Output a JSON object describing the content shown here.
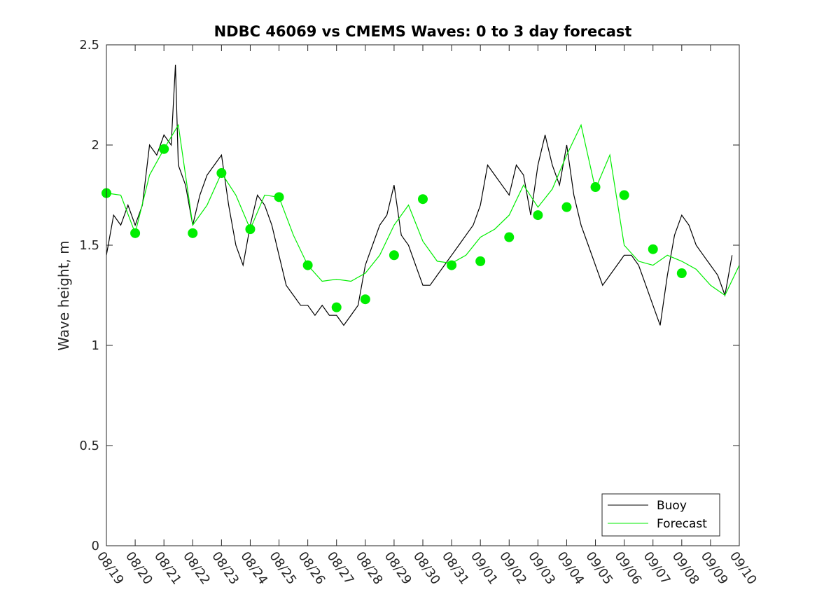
{
  "chart_data": {
    "type": "line",
    "title": "NDBC 46069 vs CMEMS Waves: 0 to 3 day forecast",
    "ylabel": "Wave height, m",
    "xlabel": "",
    "xlim": [
      0,
      22
    ],
    "ylim": [
      0,
      2.5
    ],
    "yticks": [
      0,
      0.5,
      1,
      1.5,
      2,
      2.5
    ],
    "ytick_labels": [
      "0",
      "0.5",
      "1",
      "1.5",
      "2",
      "2.5"
    ],
    "categories": [
      "08/19",
      "08/20",
      "08/21",
      "08/22",
      "08/23",
      "08/24",
      "08/25",
      "08/26",
      "08/27",
      "08/28",
      "08/29",
      "08/30",
      "08/31",
      "09/01",
      "09/02",
      "09/03",
      "09/04",
      "09/05",
      "09/06",
      "09/07",
      "09/08",
      "09/09",
      "09/10"
    ],
    "grid": false,
    "legend_position": "bottom-right",
    "colors": {
      "buoy": "#000000",
      "forecast": "#00ee00"
    },
    "series": [
      {
        "name": "Buoy",
        "x": [
          0,
          0.25,
          0.5,
          0.75,
          1,
          1.25,
          1.5,
          1.75,
          2,
          2.25,
          2.4,
          2.5,
          2.75,
          3,
          3.25,
          3.5,
          3.75,
          4,
          4.25,
          4.5,
          4.75,
          5,
          5.25,
          5.5,
          5.75,
          6,
          6.25,
          6.5,
          6.75,
          7,
          7.25,
          7.5,
          7.75,
          8,
          8.25,
          8.5,
          8.75,
          9,
          9.25,
          9.5,
          9.75,
          10,
          10.25,
          10.5,
          10.75,
          11,
          11.25,
          11.5,
          11.75,
          12,
          12.25,
          12.5,
          12.75,
          13,
          13.25,
          13.5,
          13.75,
          14,
          14.25,
          14.5,
          14.75,
          15,
          15.25,
          15.5,
          15.75,
          16,
          16.25,
          16.5,
          16.75,
          17,
          17.25,
          17.5,
          17.75,
          18,
          18.25,
          18.5,
          18.75,
          19,
          19.25,
          19.5,
          19.75,
          20,
          20.25,
          20.5,
          20.75,
          21,
          21.25,
          21.5,
          21.75
        ],
        "values": [
          1.45,
          1.65,
          1.6,
          1.7,
          1.6,
          1.7,
          2.0,
          1.95,
          2.05,
          2.0,
          2.4,
          1.9,
          1.8,
          1.6,
          1.75,
          1.85,
          1.9,
          1.95,
          1.7,
          1.5,
          1.4,
          1.6,
          1.75,
          1.7,
          1.6,
          1.45,
          1.3,
          1.25,
          1.2,
          1.2,
          1.15,
          1.2,
          1.15,
          1.15,
          1.1,
          1.15,
          1.2,
          1.4,
          1.5,
          1.6,
          1.65,
          1.8,
          1.55,
          1.5,
          1.4,
          1.3,
          1.3,
          1.35,
          1.4,
          1.45,
          1.5,
          1.55,
          1.6,
          1.7,
          1.9,
          1.85,
          1.8,
          1.75,
          1.9,
          1.85,
          1.65,
          1.9,
          2.05,
          1.9,
          1.8,
          2.0,
          1.75,
          1.6,
          1.5,
          1.4,
          1.3,
          1.35,
          1.4,
          1.45,
          1.45,
          1.4,
          1.3,
          1.2,
          1.1,
          1.35,
          1.55,
          1.65,
          1.6,
          1.5,
          1.45,
          1.4,
          1.35,
          1.25,
          1.45
        ]
      },
      {
        "name": "Forecast",
        "x": [
          0,
          0.5,
          1,
          1.5,
          2,
          2.5,
          3,
          3.5,
          4,
          4.5,
          5,
          5.5,
          6,
          6.5,
          7,
          7.5,
          8,
          8.5,
          9,
          9.5,
          10,
          10.5,
          11,
          11.5,
          12,
          12.5,
          13,
          13.5,
          14,
          14.5,
          15,
          15.5,
          16,
          16.5,
          17,
          17.5,
          18,
          18.5,
          19,
          19.5,
          20,
          20.5,
          21,
          21.5,
          22
        ],
        "values": [
          1.76,
          1.75,
          1.56,
          1.85,
          1.98,
          2.1,
          1.6,
          1.7,
          1.86,
          1.75,
          1.58,
          1.75,
          1.74,
          1.55,
          1.4,
          1.32,
          1.33,
          1.32,
          1.36,
          1.45,
          1.6,
          1.7,
          1.52,
          1.42,
          1.41,
          1.45,
          1.54,
          1.58,
          1.65,
          1.8,
          1.69,
          1.78,
          1.95,
          2.1,
          1.78,
          1.95,
          1.5,
          1.42,
          1.4,
          1.45,
          1.42,
          1.38,
          1.3,
          1.25,
          1.4
        ]
      }
    ],
    "markers": {
      "x": [
        0,
        1,
        2,
        3,
        4,
        5,
        6,
        7,
        8,
        9,
        10,
        11,
        12,
        13,
        14,
        15,
        16,
        17,
        18,
        19,
        20
      ],
      "values": [
        1.76,
        1.56,
        1.98,
        1.56,
        1.86,
        1.58,
        1.74,
        1.4,
        1.19,
        1.23,
        1.45,
        1.73,
        1.4,
        1.42,
        1.54,
        1.65,
        1.69,
        1.79,
        1.75,
        1.48,
        1.36
      ]
    }
  }
}
